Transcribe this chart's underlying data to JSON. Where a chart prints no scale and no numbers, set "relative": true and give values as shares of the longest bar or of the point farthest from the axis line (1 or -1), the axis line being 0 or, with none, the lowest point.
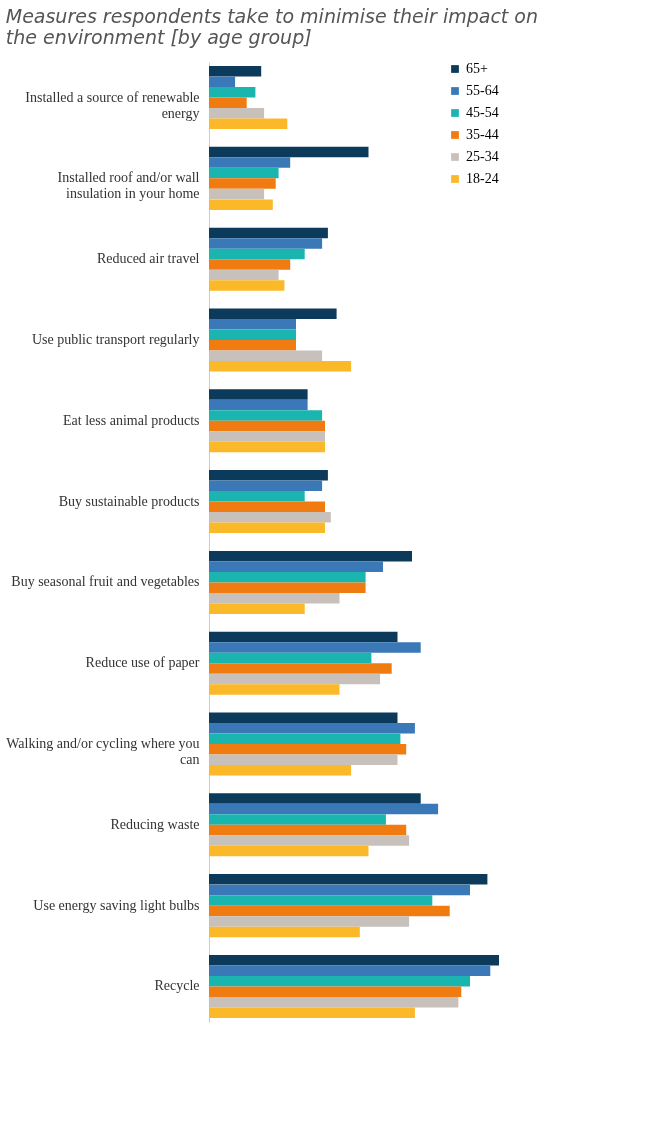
{
  "chart_data": {
    "type": "bar",
    "orientation": "horizontal",
    "relative": true,
    "title": "Measures respondents take to minimise their impact on the environment [by age group]",
    "categories": [
      "Installed a source of renewable energy",
      "Installed roof and/or wall insulation in your home",
      "Reduced air travel",
      "Use public transport regularly",
      "Eat less animal products",
      "Buy sustainable products",
      "Buy seasonal fruit and vegetables",
      "Reduce use of paper",
      "Walking and/or cycling where you can",
      "Reducing waste",
      "Use energy saving light bulbs",
      "Recycle"
    ],
    "series": [
      {
        "name": "65+",
        "color": "#0b3a5a",
        "values": [
          0.18,
          0.55,
          0.41,
          0.44,
          0.34,
          0.41,
          0.7,
          0.65,
          0.65,
          0.73,
          0.96,
          1
        ]
      },
      {
        "name": "55-64",
        "color": "#3a78b8",
        "values": [
          0.09,
          0.28,
          0.39,
          0.3,
          0.34,
          0.39,
          0.6,
          0.73,
          0.71,
          0.79,
          0.9,
          0.97
        ]
      },
      {
        "name": "45-54",
        "color": "#1bb5b0",
        "values": [
          0.16,
          0.24,
          0.33,
          0.3,
          0.39,
          0.33,
          0.54,
          0.56,
          0.66,
          0.61,
          0.77,
          0.9
        ]
      },
      {
        "name": "35-44",
        "color": "#f07b10",
        "values": [
          0.13,
          0.23,
          0.28,
          0.3,
          0.4,
          0.4,
          0.54,
          0.63,
          0.68,
          0.68,
          0.83,
          0.87
        ]
      },
      {
        "name": "25-34",
        "color": "#c8c0bb",
        "values": [
          0.19,
          0.19,
          0.24,
          0.39,
          0.4,
          0.42,
          0.45,
          0.59,
          0.65,
          0.69,
          0.69,
          0.86
        ]
      },
      {
        "name": "18-24",
        "color": "#fbb829",
        "values": [
          0.27,
          0.22,
          0.26,
          0.49,
          0.4,
          0.4,
          0.33,
          0.45,
          0.49,
          0.55,
          0.52,
          0.71
        ]
      }
    ],
    "legend": "top right"
  }
}
